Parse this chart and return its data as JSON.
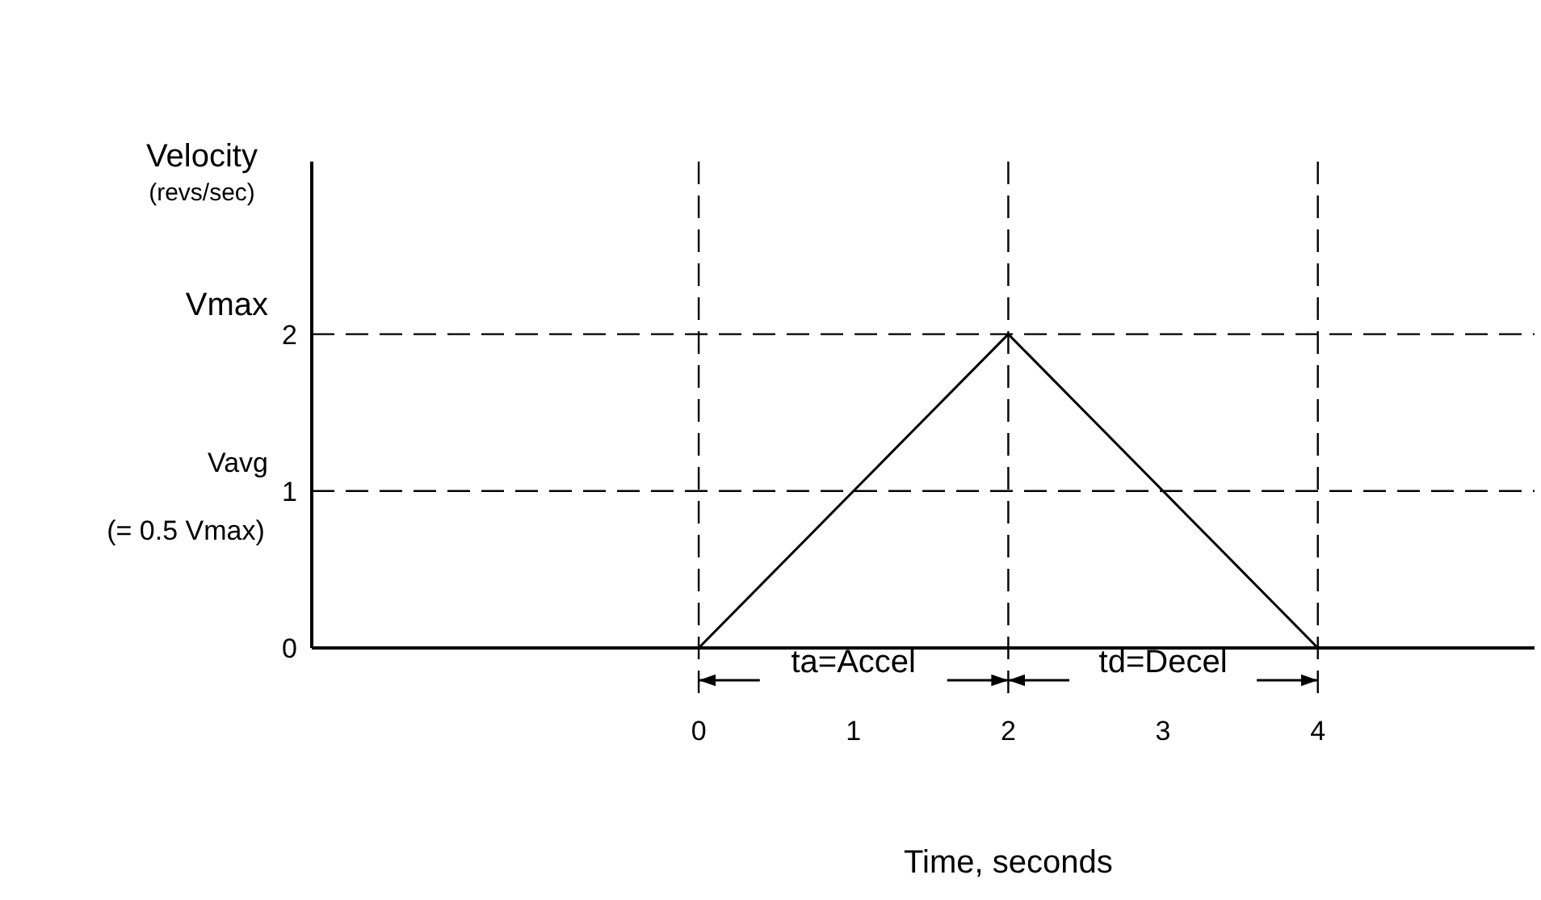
{
  "chart_data": {
    "type": "line",
    "ylabel": "Velocity\n(revs/sec)",
    "xlabel": "Time, seconds",
    "x": [
      0,
      2,
      4
    ],
    "series": [
      {
        "color": "#000000",
        "values": [
          0,
          2,
          0
        ]
      }
    ],
    "xlim": [
      -2.5,
      5.4
    ],
    "ylim": [
      0,
      3.1
    ],
    "xticks": [
      0,
      1,
      2,
      3,
      4
    ],
    "yticks": [
      0,
      1,
      2
    ],
    "grid": false,
    "marker": "none",
    "line_style": "solid",
    "ref_lines": [
      {
        "axis": "x",
        "value": 0,
        "line_style": "dashed"
      },
      {
        "axis": "x",
        "value": 2,
        "line_style": "dashed"
      },
      {
        "axis": "x",
        "value": 4,
        "line_style": "dashed"
      },
      {
        "axis": "y",
        "value": 2,
        "label": "Vmax",
        "line_style": "dashed"
      },
      {
        "axis": "y",
        "value": 1,
        "label": "Vavg",
        "line_style": "dashed"
      }
    ],
    "annotations": [
      "(= 0.5 Vmax)",
      "ta=Accel",
      "td=Decel"
    ]
  }
}
